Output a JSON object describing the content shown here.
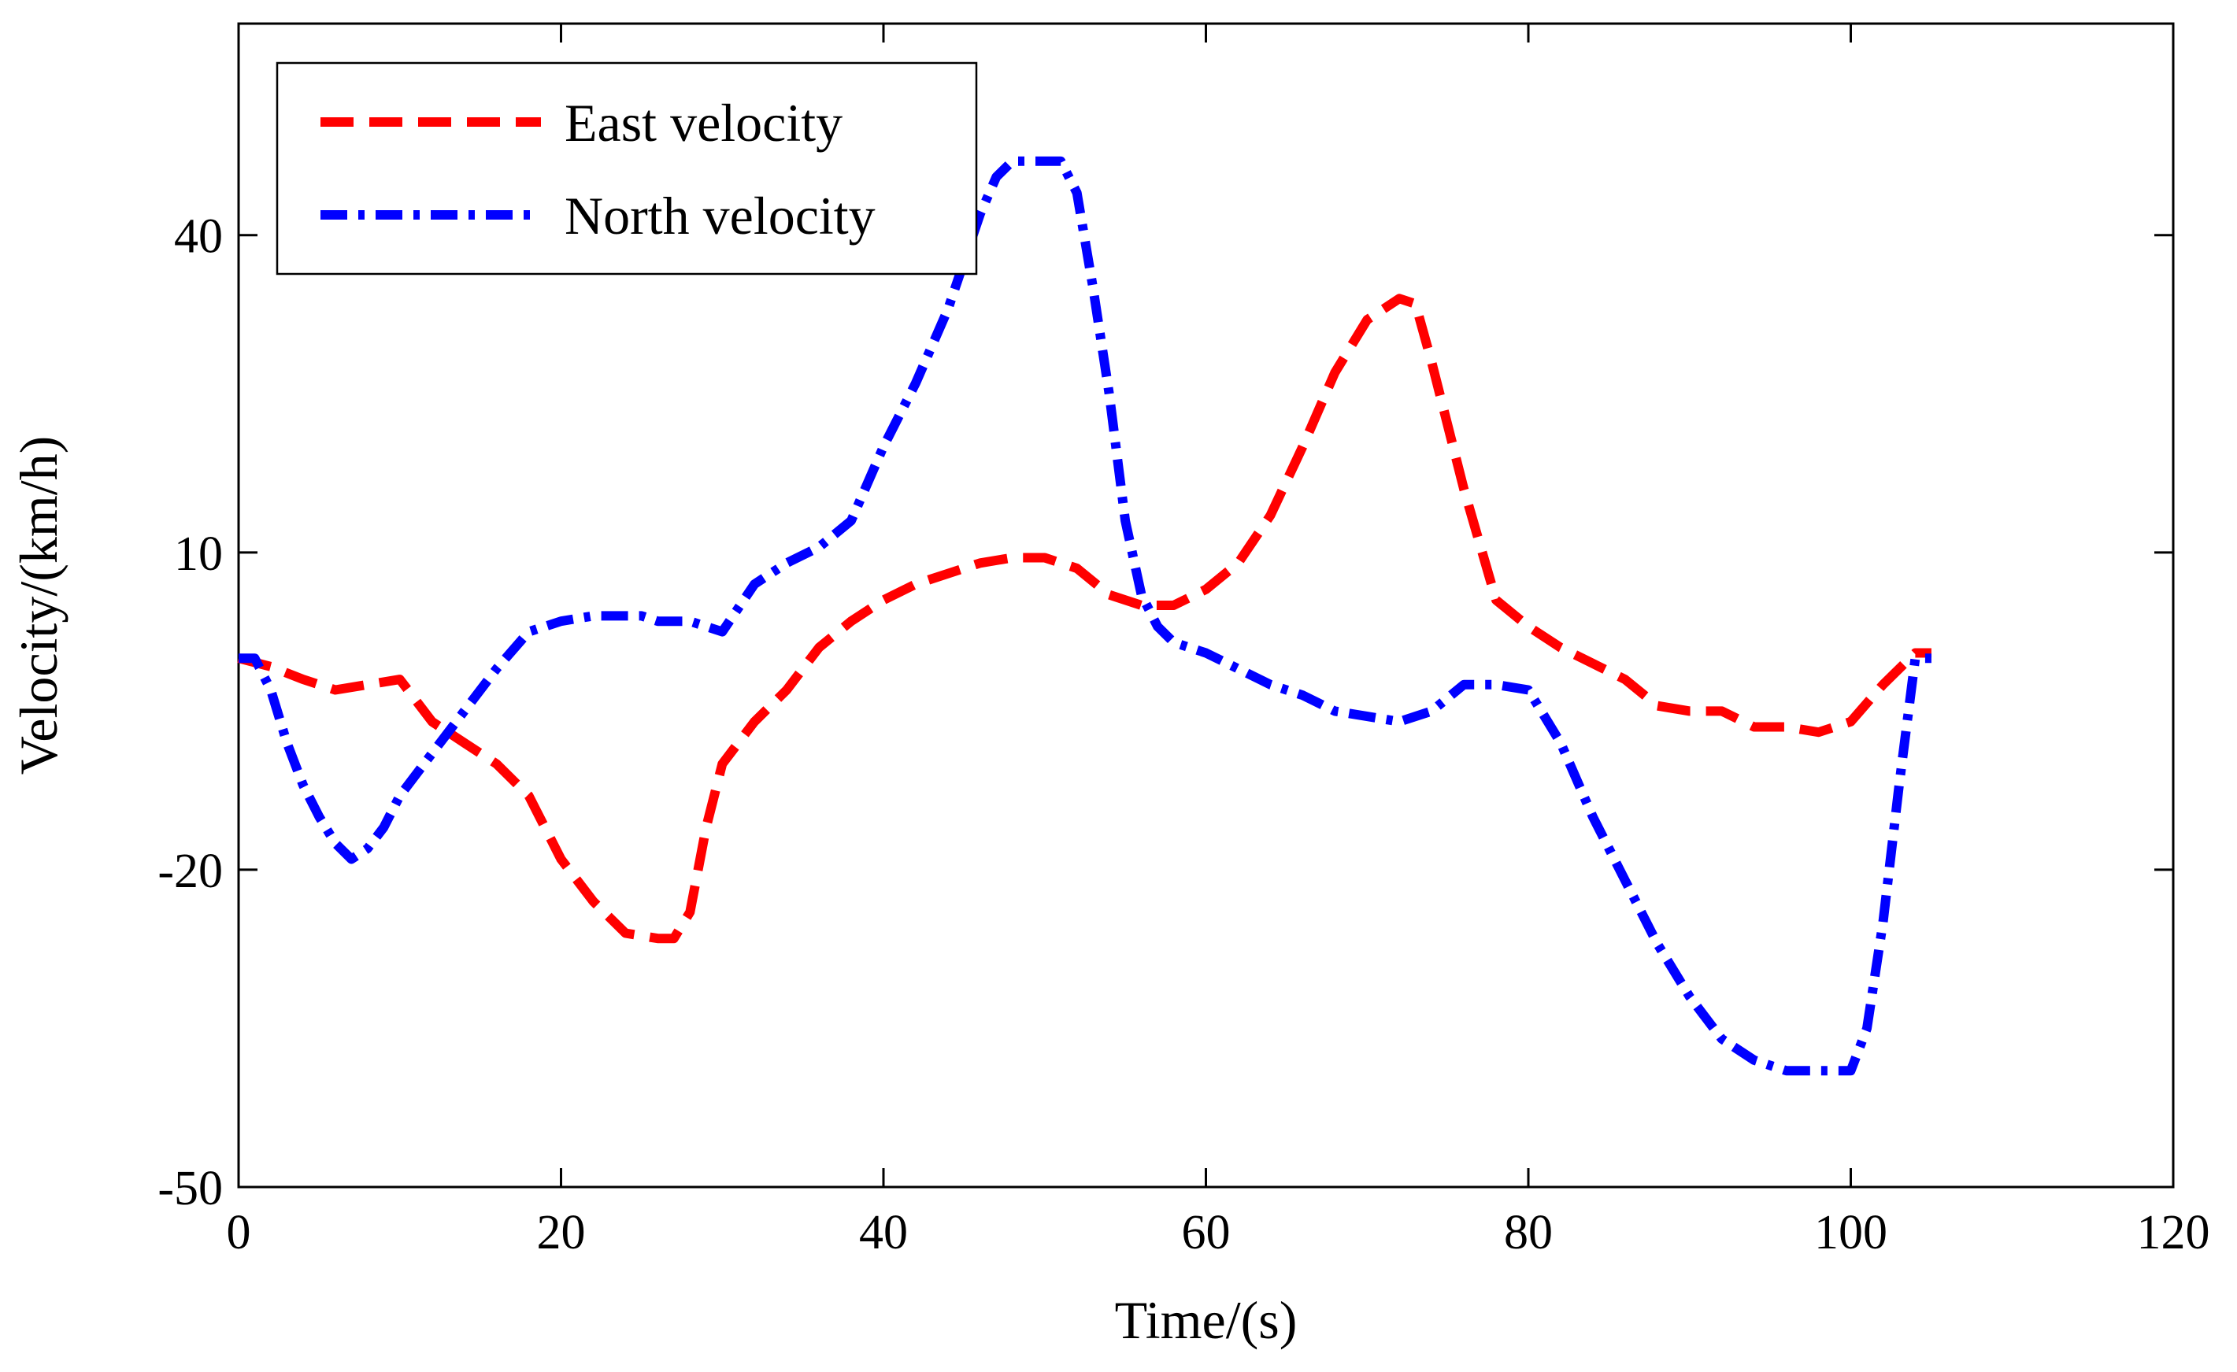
{
  "chart_data": {
    "type": "line",
    "title": "",
    "xlabel": "Time/(s)",
    "ylabel": "Velocity/(km/h)",
    "xlim": [
      0,
      120
    ],
    "ylim": [
      -50,
      60
    ],
    "xticks": [
      0,
      20,
      40,
      60,
      80,
      100,
      120
    ],
    "yticks": [
      -50,
      -20,
      10,
      40
    ],
    "grid": false,
    "legend_position": "top-left",
    "series": [
      {
        "name": "East velocity",
        "color": "#ff0000",
        "style": "dashed",
        "x": [
          0,
          2,
          4,
          6,
          8,
          10,
          12,
          14,
          16,
          18,
          20,
          22,
          24,
          26,
          27,
          28,
          29,
          30,
          32,
          34,
          36,
          38,
          40,
          42,
          44,
          46,
          48,
          50,
          52,
          54,
          56,
          58,
          60,
          62,
          64,
          66,
          68,
          70,
          72,
          73,
          74,
          76,
          78,
          80,
          82,
          84,
          86,
          88,
          90,
          92,
          94,
          96,
          98,
          100,
          102,
          104,
          105
        ],
        "values": [
          0,
          -0.8,
          -2,
          -3,
          -2.5,
          -2,
          -6,
          -8,
          -10,
          -13,
          -19,
          -23,
          -26,
          -26.5,
          -26.5,
          -24,
          -16,
          -10,
          -6,
          -3,
          1,
          3.5,
          5.5,
          7,
          8,
          9,
          9.5,
          9.5,
          8.5,
          6,
          5,
          5,
          6.5,
          9,
          13.5,
          20,
          27,
          32,
          34,
          33.5,
          28,
          16,
          5.5,
          3,
          1,
          -0.5,
          -2,
          -4.5,
          -5,
          -5,
          -6.5,
          -6.5,
          -7,
          -6,
          -2.5,
          0.5,
          0.5
        ]
      },
      {
        "name": "North velocity",
        "color": "#0000ff",
        "style": "dashdot",
        "x": [
          0,
          1,
          2,
          3,
          4,
          5,
          6,
          7,
          8,
          9,
          10,
          12,
          14,
          16,
          18,
          20,
          22,
          24,
          25,
          26,
          28,
          30,
          32,
          34,
          36,
          38,
          40,
          42,
          44,
          45,
          46,
          47,
          48,
          50,
          51,
          52,
          53,
          54,
          55,
          56,
          57,
          58,
          60,
          62,
          64,
          66,
          68,
          70,
          72,
          74,
          76,
          78,
          80,
          82,
          84,
          86,
          88,
          90,
          92,
          94,
          96,
          98,
          99,
          100,
          101,
          102,
          103,
          104,
          105
        ],
        "values": [
          0,
          0,
          -3,
          -8,
          -12,
          -15,
          -17.5,
          -19,
          -18,
          -16,
          -13,
          -9,
          -5,
          -1,
          2.5,
          3.5,
          4,
          4,
          4,
          3.5,
          3.5,
          2.5,
          7,
          9,
          10.5,
          13,
          20,
          26,
          33,
          37.5,
          42,
          45.5,
          47,
          47,
          47,
          44,
          35,
          25,
          13,
          6,
          3,
          1.5,
          0.5,
          -1,
          -2.5,
          -3.5,
          -5,
          -5.5,
          -6,
          -5,
          -2.5,
          -2.5,
          -3,
          -8,
          -15,
          -21,
          -27,
          -32,
          -36,
          -38,
          -39,
          -39,
          -39,
          -39,
          -35,
          -25,
          -12,
          0,
          0
        ]
      }
    ]
  }
}
